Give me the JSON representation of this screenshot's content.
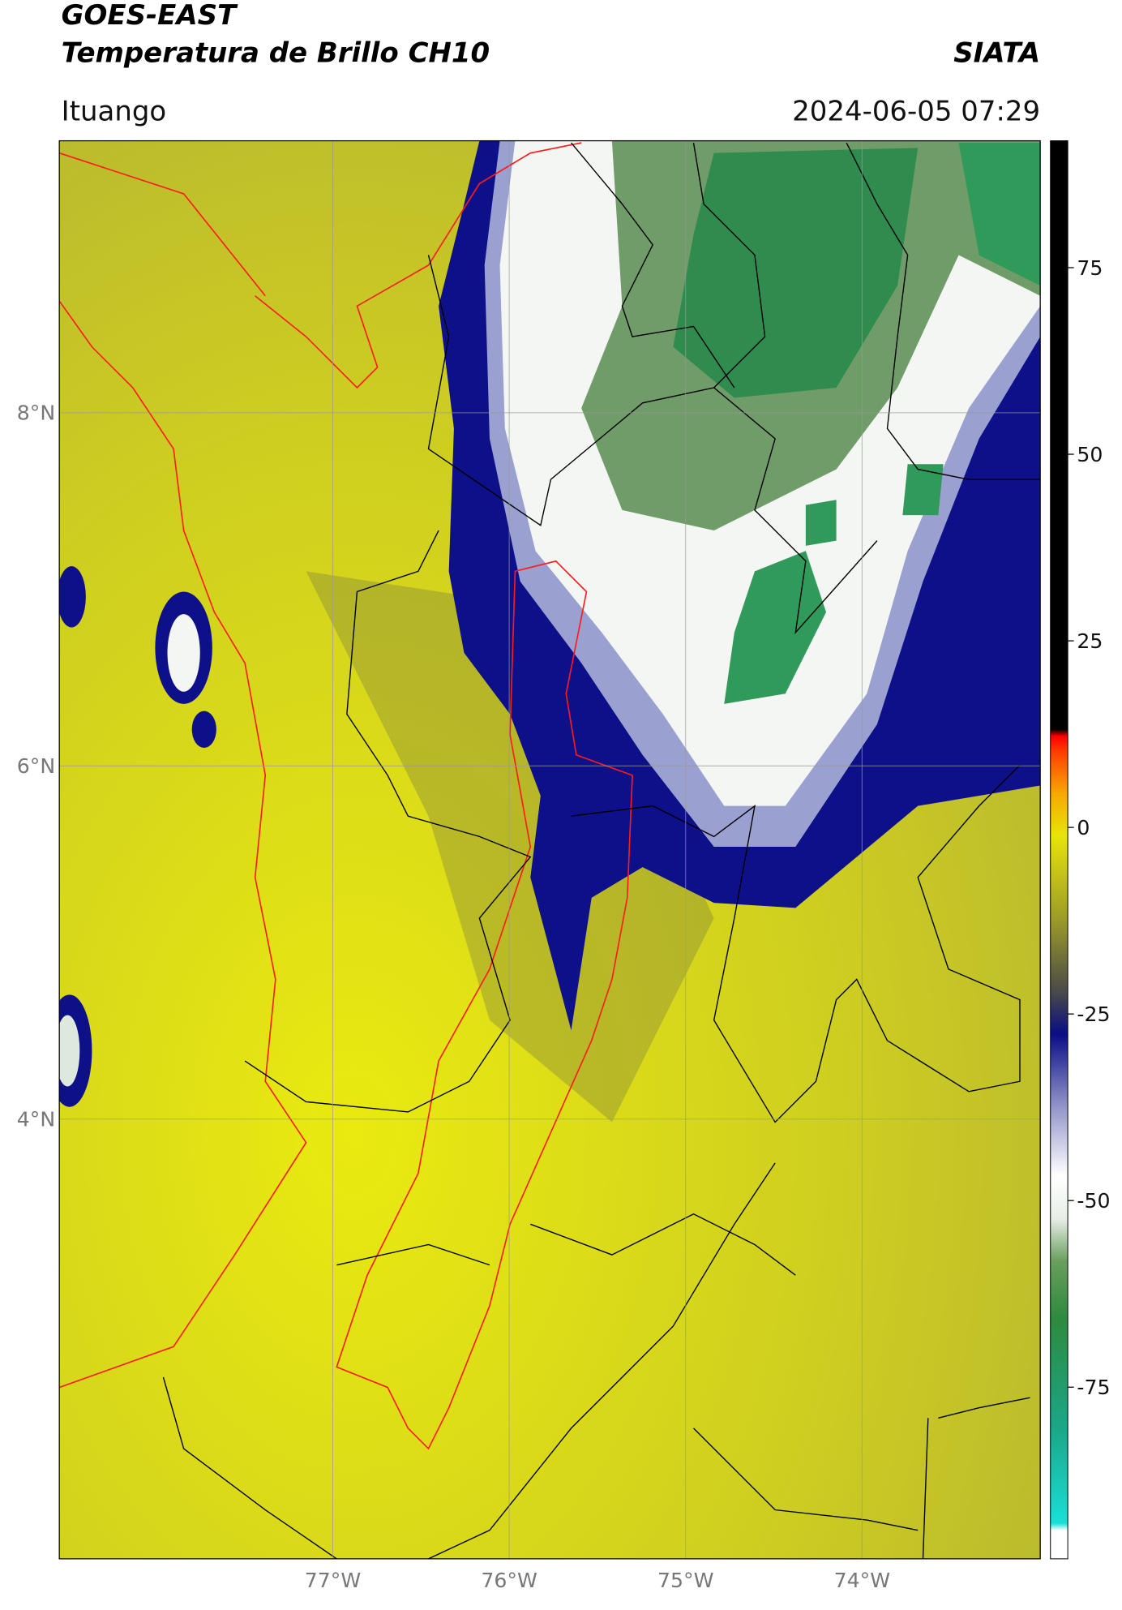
{
  "header": {
    "title": "GOES-EAST",
    "subtitle": "Temperatura de Brillo CH10",
    "source": "SIATA",
    "location": "Ituango",
    "datetime": "2024-06-05 07:29"
  },
  "map": {
    "lonlim": [
      -78.55,
      -72.99
    ],
    "latlim": [
      1.51,
      9.54
    ],
    "lonticks": [
      {
        "value": -77,
        "label": "77°W"
      },
      {
        "value": -76,
        "label": "76°W"
      },
      {
        "value": -75,
        "label": "75°W"
      },
      {
        "value": -74,
        "label": "74°W"
      }
    ],
    "latticks": [
      {
        "value": 4,
        "label": "4°N"
      },
      {
        "value": 6,
        "label": "6°N"
      },
      {
        "value": 8,
        "label": "8°N"
      }
    ],
    "grid": true
  },
  "colorbar": {
    "lim": [
      -98,
      92
    ],
    "ticks": [
      -75,
      -50,
      -25,
      0,
      25,
      50,
      75
    ]
  }
}
